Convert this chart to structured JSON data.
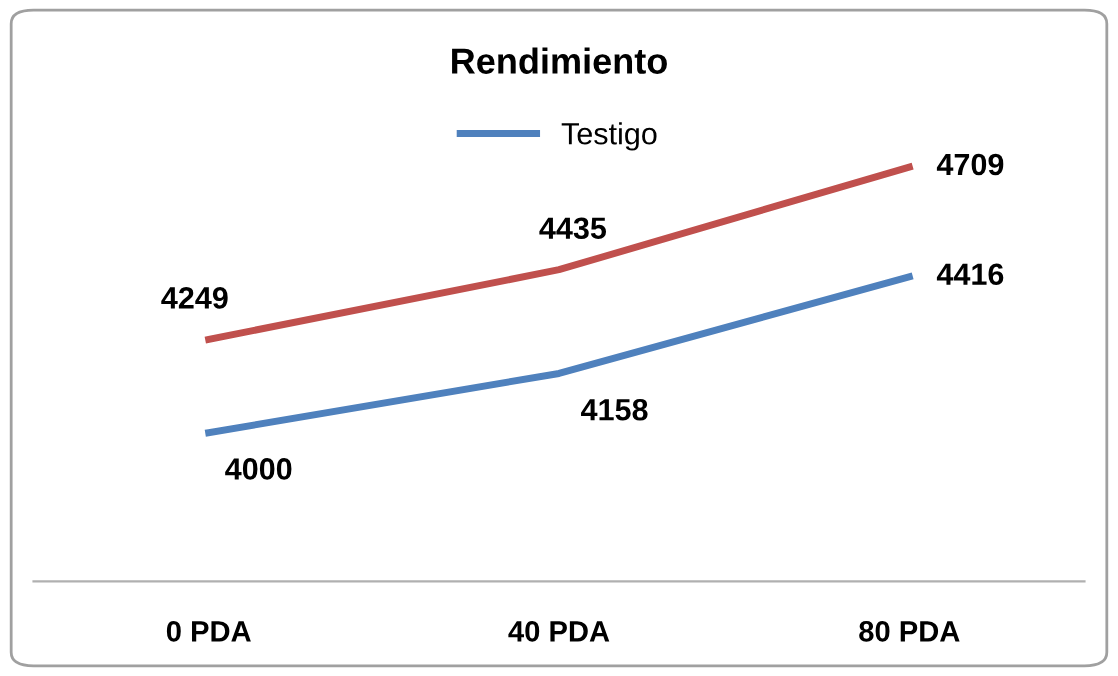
{
  "chart_data": {
    "type": "line",
    "title": "Rendimiento",
    "categories": [
      "0 PDA",
      "40 PDA",
      "80 PDA"
    ],
    "series": [
      {
        "name": "Testigo",
        "color": "#4f81bd",
        "values": [
          4000,
          4158,
          4416
        ]
      },
      {
        "color": "#c0504d",
        "values": [
          4249,
          4435,
          4709
        ]
      }
    ],
    "data_labels": true,
    "legend": "top",
    "marker": "none",
    "line_style": "solid",
    "grid": false
  }
}
